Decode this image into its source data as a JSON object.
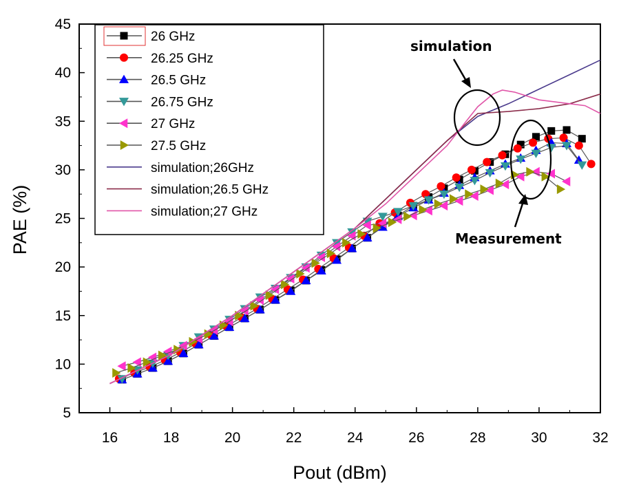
{
  "chart_data": {
    "type": "line",
    "title": "",
    "xlabel": "Pout (dBm)",
    "ylabel": "PAE (%)",
    "xlim": [
      15,
      32
    ],
    "ylim": [
      5,
      45
    ],
    "xticks": [
      16,
      18,
      20,
      22,
      24,
      26,
      28,
      30,
      32
    ],
    "yticks": [
      5,
      10,
      15,
      20,
      25,
      30,
      35,
      40,
      45
    ],
    "legend_position": "top-left",
    "series": [
      {
        "name": "26 GHz",
        "color": "#000000",
        "marker": "square",
        "x": [
          16.4,
          16.9,
          17.4,
          17.9,
          18.4,
          18.9,
          19.4,
          19.9,
          20.4,
          20.9,
          21.4,
          21.9,
          22.4,
          22.9,
          23.4,
          23.9,
          24.4,
          24.9,
          25.4,
          25.9,
          26.4,
          26.9,
          27.4,
          27.9,
          28.4,
          28.9,
          29.4,
          29.9,
          30.4,
          30.9,
          31.4
        ],
        "y": [
          8.4,
          9.0,
          9.6,
          10.3,
          11.1,
          12.0,
          12.9,
          13.8,
          14.7,
          15.6,
          16.6,
          17.6,
          18.6,
          19.7,
          20.8,
          21.9,
          23.0,
          24.2,
          25.3,
          26.3,
          27.2,
          28.1,
          29.0,
          29.9,
          30.8,
          31.6,
          32.6,
          33.4,
          34.0,
          34.1,
          33.2
        ]
      },
      {
        "name": "26.25 GHz",
        "color": "#ff0000",
        "marker": "circle",
        "x": [
          16.3,
          16.8,
          17.3,
          17.8,
          18.3,
          18.8,
          19.3,
          19.8,
          20.3,
          20.8,
          21.3,
          21.8,
          22.3,
          22.8,
          23.3,
          23.8,
          24.3,
          24.8,
          25.3,
          25.8,
          26.3,
          26.8,
          27.3,
          27.8,
          28.3,
          28.8,
          29.3,
          29.8,
          30.3,
          30.8,
          31.3,
          31.7
        ],
        "y": [
          8.5,
          9.1,
          9.7,
          10.4,
          11.2,
          12.1,
          13.0,
          13.9,
          14.8,
          15.7,
          16.7,
          17.7,
          18.7,
          19.8,
          20.9,
          22.0,
          23.2,
          24.5,
          25.6,
          26.6,
          27.5,
          28.3,
          29.2,
          30.0,
          30.8,
          31.5,
          32.2,
          32.8,
          33.2,
          33.3,
          32.5,
          30.6
        ]
      },
      {
        "name": "26.5 GHz",
        "color": "#0000ff",
        "marker": "triangle-up",
        "x": [
          16.4,
          16.9,
          17.4,
          17.9,
          18.4,
          18.9,
          19.4,
          19.9,
          20.4,
          20.9,
          21.4,
          21.9,
          22.4,
          22.9,
          23.4,
          23.9,
          24.4,
          24.9,
          25.4,
          25.9,
          26.4,
          26.9,
          27.4,
          27.9,
          28.4,
          28.9,
          29.4,
          29.9,
          30.4,
          30.9,
          31.3
        ],
        "y": [
          8.4,
          9.0,
          9.6,
          10.3,
          11.1,
          12.0,
          12.9,
          13.8,
          14.7,
          15.6,
          16.6,
          17.5,
          18.6,
          19.6,
          20.7,
          21.9,
          23.0,
          24.1,
          25.2,
          26.1,
          26.9,
          27.6,
          28.4,
          29.2,
          29.9,
          30.6,
          31.2,
          32.0,
          32.8,
          32.7,
          31.0
        ]
      },
      {
        "name": "26.75 GHz",
        "color": "#339999",
        "marker": "triangle-down",
        "x": [
          16.4,
          16.9,
          17.4,
          17.9,
          18.4,
          18.9,
          19.4,
          19.9,
          20.4,
          20.9,
          21.4,
          21.9,
          22.4,
          22.9,
          23.4,
          23.9,
          24.4,
          24.9,
          25.4,
          25.9,
          26.4,
          26.9,
          27.4,
          27.9,
          28.4,
          28.9,
          29.4,
          29.9,
          30.4,
          30.9,
          31.4
        ],
        "y": [
          8.5,
          9.4,
          10.1,
          10.9,
          11.9,
          12.8,
          13.6,
          14.6,
          15.7,
          16.9,
          17.8,
          18.9,
          20.0,
          21.2,
          22.5,
          23.6,
          24.7,
          25.2,
          25.7,
          26.3,
          26.9,
          27.5,
          28.2,
          28.9,
          29.7,
          30.4,
          31.1,
          31.7,
          32.3,
          32.5,
          30.5
        ]
      },
      {
        "name": "27 GHz",
        "color": "#ff33cc",
        "marker": "triangle-left",
        "x": [
          16.4,
          16.9,
          17.4,
          17.9,
          18.4,
          18.9,
          19.4,
          19.9,
          20.4,
          20.9,
          21.4,
          21.9,
          22.4,
          22.9,
          23.4,
          23.9,
          24.4,
          24.9,
          25.4,
          25.9,
          26.4,
          26.9,
          27.4,
          27.9,
          28.4,
          28.9,
          29.4,
          29.9,
          30.4,
          30.9
        ],
        "y": [
          9.8,
          10.2,
          10.7,
          11.3,
          11.9,
          12.6,
          13.5,
          14.4,
          15.5,
          16.6,
          17.7,
          18.8,
          19.9,
          21.0,
          22.1,
          23.2,
          24.3,
          24.5,
          24.9,
          25.3,
          25.8,
          26.3,
          26.8,
          27.3,
          27.9,
          28.5,
          29.3,
          29.8,
          29.6,
          28.8
        ]
      },
      {
        "name": "27.5 GHz",
        "color": "#999900",
        "marker": "triangle-right",
        "x": [
          16.2,
          16.7,
          17.2,
          17.7,
          18.2,
          18.7,
          19.2,
          19.7,
          20.2,
          20.7,
          21.2,
          21.7,
          22.2,
          22.7,
          23.2,
          23.7,
          24.2,
          24.7,
          25.2,
          25.7,
          26.2,
          26.7,
          27.2,
          27.7,
          28.2,
          28.7,
          29.2,
          29.7,
          30.2,
          30.7
        ],
        "y": [
          9.1,
          9.6,
          10.2,
          10.9,
          11.5,
          12.3,
          13.1,
          14.0,
          15.0,
          16.0,
          17.1,
          18.2,
          19.3,
          20.4,
          21.4,
          22.5,
          23.4,
          24.0,
          24.6,
          25.2,
          25.9,
          26.5,
          27.0,
          27.5,
          28.0,
          28.6,
          29.5,
          29.8,
          29.3,
          28.0
        ]
      },
      {
        "name": "simulation;26GHz",
        "color": "#4a3a8c",
        "marker": "none",
        "x": [
          16,
          18,
          20,
          22,
          24,
          25,
          26,
          27,
          28,
          29,
          30,
          31,
          32
        ],
        "y": [
          8.0,
          11.0,
          15.0,
          19.5,
          24.0,
          27.0,
          30.0,
          33.0,
          35.5,
          36.8,
          38.3,
          39.8,
          41.3
        ]
      },
      {
        "name": "simulation;26.5 GHz",
        "color": "#8b2c4a",
        "marker": "none",
        "x": [
          16,
          18,
          20,
          22,
          24,
          25,
          26,
          27,
          28,
          29,
          30,
          31,
          32
        ],
        "y": [
          8.0,
          11.0,
          15.0,
          19.5,
          24.0,
          27.0,
          30.0,
          33.0,
          35.8,
          36.0,
          36.3,
          36.8,
          37.8
        ]
      },
      {
        "name": "simulation;27 GHz",
        "color": "#e055a8",
        "marker": "none",
        "x": [
          16,
          18,
          20,
          22,
          24,
          25,
          26,
          27,
          27.5,
          28,
          28.5,
          28.8,
          29.2,
          30,
          31,
          31.5,
          32
        ],
        "y": [
          8.0,
          11.0,
          15.0,
          19.5,
          24.0,
          26.5,
          29.5,
          32.5,
          34.5,
          36.5,
          37.8,
          38.2,
          38.0,
          37.2,
          36.8,
          36.6,
          35.8
        ]
      }
    ],
    "annotations": [
      {
        "text": "simulation",
        "target": "simulation curves near Pout 28 dBm"
      },
      {
        "text": "Measurement",
        "target": "measured curves near Pout 30 dBm"
      }
    ]
  }
}
